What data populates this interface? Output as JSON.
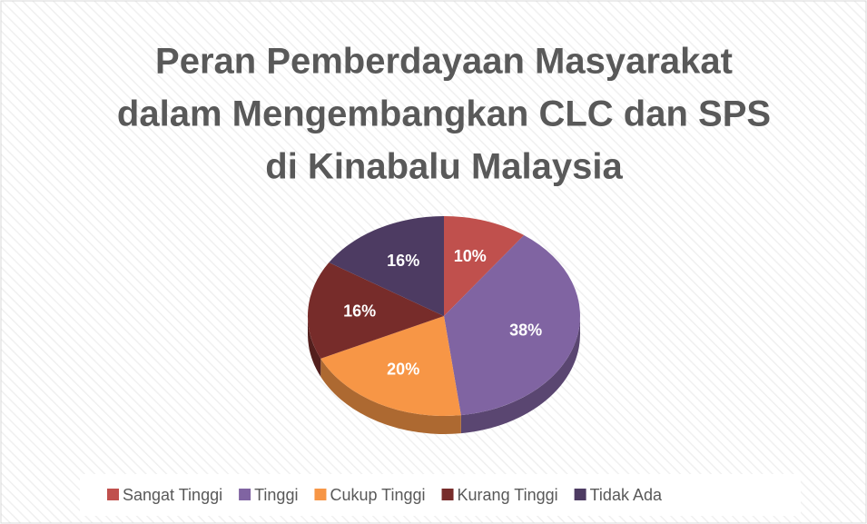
{
  "chart_data": {
    "type": "pie",
    "title": [
      "Peran Pemberdayaan Masyarakat",
      "dalam Mengembangkan CLC dan SPS",
      "di Kinabalu Malaysia"
    ],
    "categories": [
      "Sangat Tinggi",
      "Tinggi",
      "Cukup Tinggi",
      "Kurang Tinggi",
      "Tidak Ada"
    ],
    "values": [
      10,
      38,
      20,
      16,
      16
    ],
    "value_labels": [
      "10%",
      "38%",
      "20%",
      "16%",
      "16%"
    ],
    "colors": [
      "#c0504d",
      "#8064a2",
      "#f79646",
      "#772c2a",
      "#4d3b62"
    ],
    "legend": "bottom"
  }
}
